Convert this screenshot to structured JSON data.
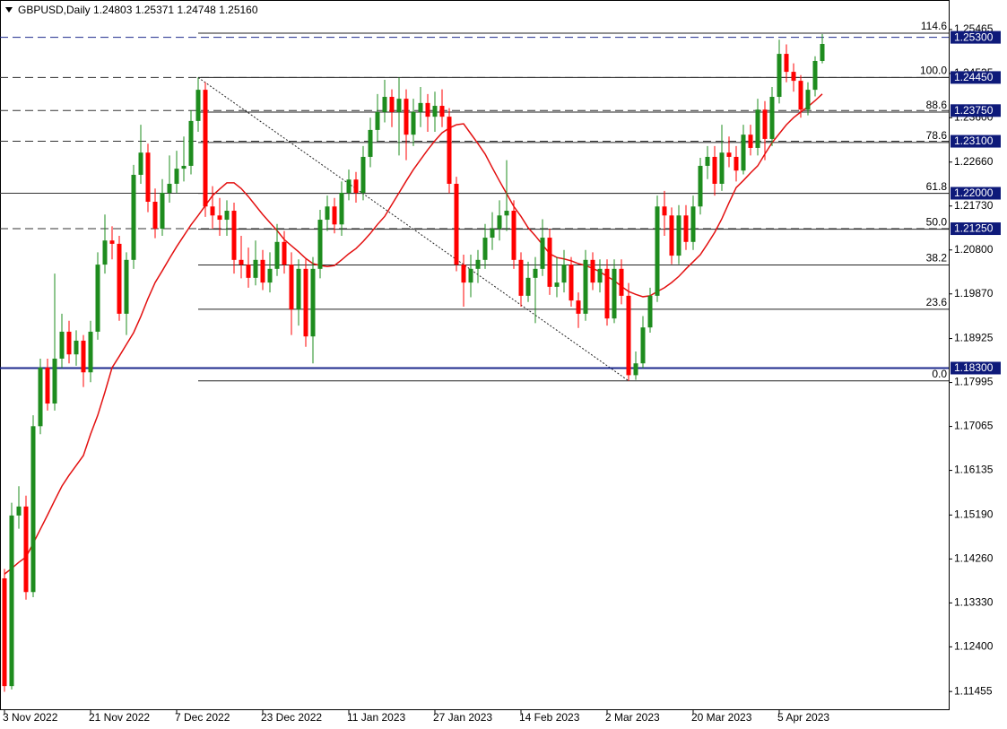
{
  "chart_data": {
    "type": "candlestick",
    "title": "GBPUSD,Daily  1.24803 1.25371 1.24748 1.25160",
    "categories": [
      "3 Nov 2022",
      null,
      null,
      null,
      null,
      null,
      null,
      null,
      null,
      null,
      null,
      null,
      "21 Nov 2022",
      null,
      null,
      null,
      null,
      null,
      null,
      null,
      null,
      null,
      null,
      null,
      "7 Dec 2022",
      null,
      null,
      null,
      null,
      null,
      null,
      null,
      null,
      null,
      null,
      null,
      "23 Dec 2022",
      null,
      null,
      null,
      null,
      null,
      null,
      null,
      null,
      null,
      null,
      null,
      "11 Jan 2023",
      null,
      null,
      null,
      null,
      null,
      null,
      null,
      null,
      null,
      null,
      null,
      "27 Jan 2023",
      null,
      null,
      null,
      null,
      null,
      null,
      null,
      null,
      null,
      null,
      null,
      "14 Feb 2023",
      null,
      null,
      null,
      null,
      null,
      null,
      null,
      null,
      null,
      null,
      null,
      "2 Mar 2023",
      null,
      null,
      null,
      null,
      null,
      null,
      null,
      null,
      null,
      null,
      null,
      "20 Mar 2023",
      null,
      null,
      null,
      null,
      null,
      null,
      null,
      null,
      null,
      null,
      null,
      "5 Apr 2023",
      null,
      null,
      null,
      null,
      null,
      null
    ],
    "open": [
      1.1385,
      1.1157,
      1.1518,
      1.1537,
      1.1356,
      1.1707,
      1.1831,
      1.1755,
      1.185,
      1.1907,
      1.1859,
      1.1888,
      1.1821,
      1.1907,
      1.2049,
      1.21,
      1.2093,
      1.1945,
      1.2059,
      1.2239,
      1.2286,
      1.2182,
      1.2125,
      1.2201,
      1.222,
      1.2252,
      1.2258,
      1.2353,
      1.2419,
      1.2172,
      1.2153,
      1.2144,
      1.2163,
      1.2059,
      1.2049,
      1.2021,
      1.2059,
      1.2011,
      1.204,
      1.2097,
      1.2049,
      1.1954,
      1.204,
      1.1897,
      1.204,
      1.2144,
      1.2172,
      1.2134,
      1.2201,
      1.2229,
      1.2201,
      1.2277,
      1.2334,
      1.2372,
      1.2404,
      1.2372,
      1.24,
      1.2324,
      1.2372,
      1.2391,
      1.2362,
      1.2385,
      1.2362,
      1.222,
      1.2049,
      1.2011,
      1.204,
      1.2059,
      1.2106,
      1.2125,
      1.2153,
      1.2163,
      1.2059,
      1.1983,
      1.2021,
      1.204,
      1.2106,
      1.2002,
      1.2011,
      1.2049,
      1.1973,
      1.1945,
      1.2059,
      1.2011,
      1.204,
      1.1935,
      1.204,
      1.1983,
      1.1815,
      1.184,
      1.1916,
      1.1983,
      1.2172,
      1.2153,
      1.2068,
      1.2153,
      1.2097,
      1.2172,
      1.2258,
      1.2277,
      1.222,
      1.2286,
      1.2277,
      1.2248,
      1.2324,
      1.2296,
      1.2377,
      1.2315,
      1.2404,
      1.2495,
      1.2457,
      1.2438,
      1.2377,
      1.2419,
      1.248
    ],
    "high": [
      1.1405,
      1.1545,
      1.158,
      1.156,
      1.173,
      1.185,
      1.185,
      1.203,
      1.1945,
      1.193,
      1.191,
      1.19,
      1.193,
      1.2075,
      1.2155,
      1.213,
      1.211,
      1.2075,
      1.226,
      1.2345,
      1.2305,
      1.221,
      1.223,
      1.228,
      1.229,
      1.232,
      1.2375,
      1.2445,
      1.2435,
      1.2215,
      1.219,
      1.2185,
      1.218,
      1.211,
      1.2085,
      1.21,
      1.208,
      1.2075,
      1.2135,
      1.212,
      1.2075,
      1.206,
      1.206,
      1.2065,
      1.2165,
      1.2195,
      1.219,
      1.2225,
      1.225,
      1.2245,
      1.23,
      1.236,
      1.241,
      1.244,
      1.242,
      1.2445,
      1.242,
      1.24,
      1.2425,
      1.241,
      1.2415,
      1.242,
      1.238,
      1.2235,
      1.207,
      1.207,
      1.208,
      1.2135,
      1.216,
      1.2185,
      1.227,
      1.2185,
      1.2075,
      1.2055,
      1.2065,
      1.2145,
      1.2125,
      1.2065,
      1.208,
      1.2065,
      1.199,
      1.208,
      1.2075,
      1.206,
      1.206,
      1.206,
      1.206,
      1.201,
      1.1865,
      1.194,
      1.2,
      1.2195,
      1.2205,
      1.217,
      1.2175,
      1.2175,
      1.2195,
      1.2275,
      1.23,
      1.23,
      1.2345,
      1.232,
      1.23,
      1.2345,
      1.2345,
      1.24,
      1.2395,
      1.2425,
      1.2525,
      1.2515,
      1.2475,
      1.245,
      1.2435,
      1.249,
      1.2537
    ],
    "low": [
      1.1145,
      1.115,
      1.149,
      1.134,
      1.1345,
      1.169,
      1.174,
      1.174,
      1.183,
      1.184,
      1.1835,
      1.179,
      1.18,
      1.189,
      1.203,
      1.206,
      1.193,
      1.19,
      1.204,
      1.222,
      1.216,
      1.2105,
      1.211,
      1.218,
      1.22,
      1.2225,
      1.224,
      1.233,
      1.215,
      1.2125,
      1.211,
      1.211,
      1.203,
      1.202,
      1.2,
      1.2005,
      1.1995,
      1.199,
      1.2025,
      1.203,
      1.19,
      1.192,
      1.1875,
      1.184,
      1.202,
      1.212,
      1.2115,
      1.211,
      1.2185,
      1.218,
      1.2185,
      1.2255,
      1.231,
      1.235,
      1.234,
      1.228,
      1.227,
      1.23,
      1.234,
      1.233,
      1.233,
      1.234,
      1.22,
      1.2035,
      1.196,
      1.198,
      1.201,
      1.204,
      1.208,
      1.21,
      1.212,
      1.204,
      1.196,
      1.197,
      1.1925,
      1.2025,
      1.1985,
      1.198,
      1.199,
      1.196,
      1.1915,
      1.193,
      1.1995,
      1.199,
      1.192,
      1.1925,
      1.1965,
      1.1803,
      1.1805,
      1.183,
      1.1905,
      1.197,
      1.211,
      1.205,
      1.205,
      1.208,
      1.208,
      1.2155,
      1.223,
      1.2195,
      1.2205,
      1.2255,
      1.2225,
      1.224,
      1.228,
      1.228,
      1.227,
      1.23,
      1.239,
      1.2435,
      1.2415,
      1.236,
      1.2365,
      1.2405,
      1.2475
    ],
    "close": [
      1.1157,
      1.1518,
      1.1537,
      1.1356,
      1.1707,
      1.1831,
      1.1755,
      1.185,
      1.1907,
      1.1859,
      1.1888,
      1.1821,
      1.1907,
      1.2049,
      1.21,
      1.2093,
      1.1945,
      1.2059,
      1.2239,
      1.2286,
      1.2182,
      1.2125,
      1.2201,
      1.222,
      1.2252,
      1.2258,
      1.2353,
      1.2419,
      1.2172,
      1.2153,
      1.2144,
      1.2163,
      1.2059,
      1.2049,
      1.2021,
      1.2059,
      1.2011,
      1.204,
      1.2097,
      1.2049,
      1.1954,
      1.204,
      1.1897,
      1.204,
      1.2144,
      1.2172,
      1.2134,
      1.2201,
      1.2229,
      1.2201,
      1.2277,
      1.2334,
      1.2372,
      1.2404,
      1.2372,
      1.24,
      1.2324,
      1.2372,
      1.2391,
      1.2362,
      1.2385,
      1.2362,
      1.222,
      1.2049,
      1.2011,
      1.204,
      1.2059,
      1.2106,
      1.2125,
      1.2153,
      1.2163,
      1.2059,
      1.1983,
      1.2021,
      1.204,
      1.2106,
      1.2002,
      1.2011,
      1.2049,
      1.1973,
      1.1945,
      1.2059,
      1.2011,
      1.204,
      1.1935,
      1.204,
      1.1983,
      1.1815,
      1.184,
      1.1916,
      1.1983,
      1.2172,
      1.2153,
      1.2068,
      1.2153,
      1.2097,
      1.2172,
      1.2258,
      1.2277,
      1.222,
      1.2286,
      1.2277,
      1.2248,
      1.2324,
      1.2296,
      1.2377,
      1.2315,
      1.2404,
      1.2495,
      1.2457,
      1.2438,
      1.2377,
      1.2419,
      1.248,
      1.2516
    ],
    "up_color": "#1e8c1e",
    "down_color": "#ff0000",
    "ma": {
      "color": "#e31010",
      "values": [
        1.1394,
        1.1406,
        1.1419,
        1.143,
        1.1459,
        1.1489,
        1.1519,
        1.155,
        1.158,
        1.1603,
        1.1624,
        1.1645,
        1.169,
        1.173,
        1.1779,
        1.1831,
        1.1855,
        1.188,
        1.1905,
        1.1939,
        1.1977,
        1.2011,
        1.2036,
        1.2062,
        1.2087,
        1.211,
        1.2133,
        1.2153,
        1.2174,
        1.2195,
        1.2209,
        1.2222,
        1.2222,
        1.221,
        1.2193,
        1.2174,
        1.2155,
        1.2138,
        1.2121,
        1.2102,
        1.2089,
        1.2076,
        1.2062,
        1.2051,
        1.2047,
        1.2045,
        1.2047,
        1.2059,
        1.2072,
        1.2083,
        1.2098,
        1.2115,
        1.2134,
        1.2151,
        1.2176,
        1.2201,
        1.2226,
        1.225,
        1.2271,
        1.2292,
        1.2311,
        1.2328,
        1.2338,
        1.2345,
        1.2347,
        1.2326,
        1.2305,
        1.2283,
        1.2254,
        1.2226,
        1.2199,
        1.2172,
        1.2151,
        1.2127,
        1.211,
        1.2091,
        1.2072,
        1.2064,
        1.2061,
        1.2057,
        1.2051,
        1.2047,
        1.2041,
        1.2034,
        1.2024,
        1.2015,
        1.2003,
        1.1992,
        1.1986,
        1.1981,
        1.1983,
        1.1992,
        1.2,
        1.2011,
        1.2024,
        1.204,
        1.2055,
        1.207,
        1.2093,
        1.2117,
        1.2146,
        1.218,
        1.2212,
        1.2227,
        1.2243,
        1.2258,
        1.2283,
        1.2307,
        1.2326,
        1.2345,
        1.236,
        1.2372,
        1.2383,
        1.2396,
        1.241
      ]
    },
    "ylim": [
      1.1106,
      1.2609
    ],
    "yticks": [
      1.25465,
      1.24535,
      {
        "value": 1.236,
        "label": "1.23600"
      },
      {
        "value": 1.2266,
        "label": "1.22660"
      },
      {
        "value": 1.2173,
        "label": "1.21730"
      },
      {
        "value": 1.208,
        "label": "1.20800"
      },
      {
        "value": 1.1987,
        "label": "1.19870"
      },
      1.18925,
      1.17995,
      1.17065,
      1.16135,
      {
        "value": 1.1519,
        "label": "1.15190"
      },
      {
        "value": 1.1426,
        "label": "1.14260"
      },
      {
        "value": 1.1333,
        "label": "1.13330"
      },
      {
        "value": 1.124,
        "label": "1.12400"
      },
      1.11455
    ],
    "levels": [
      {
        "value": 1.253,
        "label": "1.25300",
        "style": "dashed",
        "color": "#1c2a8c"
      },
      {
        "value": 1.2445,
        "label": "1.24450",
        "style": "dashed",
        "color": "#333333"
      },
      {
        "value": 1.2375,
        "label": "1.23750",
        "style": "dashed",
        "color": "#333333"
      },
      {
        "value": 1.231,
        "label": "1.23100",
        "style": "dashed",
        "color": "#333333"
      },
      {
        "value": 1.22,
        "label": "1.22000",
        "style": "solid",
        "color": "#333333"
      },
      {
        "value": 1.2125,
        "label": "1.21250",
        "style": "dashed",
        "color": "#333333"
      },
      {
        "value": 1.183,
        "label": "1.18300",
        "style": "solid",
        "color": "#1c2a8c"
      }
    ],
    "fib": {
      "high": 1.2445,
      "low": 1.1803,
      "start": 27,
      "end": 87,
      "color": "#222222",
      "levels": [
        {
          "value": 0,
          "label": "0.0"
        },
        23.6,
        38.2,
        {
          "value": 50,
          "label": "50.0"
        },
        61.8,
        78.6,
        88.6,
        {
          "value": 100,
          "label": "100.0"
        },
        114.6
      ]
    }
  }
}
